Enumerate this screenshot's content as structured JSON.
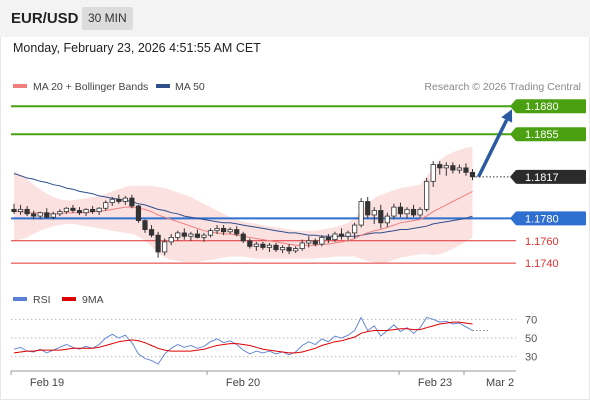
{
  "header": {
    "symbol": "EUR/USD",
    "interval": "30 MIN",
    "datetime": "Monday, February 23, 2026 4:51:55 AM CET"
  },
  "legend": {
    "ma20_label": "MA 20 + Bollinger Bands",
    "ma20_color": "#f08080",
    "ma50_label": "MA 50",
    "ma50_color": "#2e4e8c",
    "credit": "Research © 2026 Trading Central"
  },
  "rsi_legend": {
    "rsi_label": "RSI",
    "rsi_color": "#5b7fd6",
    "ma_label": "9MA",
    "ma_color": "#e00000"
  },
  "chart_data": {
    "type": "candlestick",
    "title": "",
    "ylim": [
      1.1725,
      1.189
    ],
    "x_ticks": [
      "Feb 19",
      "Feb 20",
      "Feb 23",
      "Mar 2"
    ],
    "last_price": {
      "label": "1.1817",
      "value": 1.1817
    },
    "levels": [
      {
        "label": "1.1880",
        "value": 1.188,
        "kind": "resistance",
        "color": "#4aa010"
      },
      {
        "label": "1.1855",
        "value": 1.1855,
        "kind": "resistance",
        "color": "#4aa010"
      },
      {
        "label": "1.1780",
        "value": 1.178,
        "kind": "pivot",
        "color": "#2f6fd0"
      },
      {
        "label": "1.1760",
        "value": 1.176,
        "kind": "support",
        "color": "#e03030"
      },
      {
        "label": "1.1740",
        "value": 1.174,
        "kind": "support",
        "color": "#e03030"
      }
    ],
    "arrow": {
      "from": 1.1817,
      "to": 1.188,
      "direction": "up",
      "color": "#2a5aa0"
    },
    "candles": [
      [
        1.1788,
        1.1793,
        1.1784,
        1.1786
      ],
      [
        1.1786,
        1.1792,
        1.1783,
        1.1788
      ],
      [
        1.1788,
        1.1791,
        1.1782,
        1.1784
      ],
      [
        1.1784,
        1.1787,
        1.1779,
        1.1782
      ],
      [
        1.1782,
        1.1786,
        1.1779,
        1.1785
      ],
      [
        1.1785,
        1.1789,
        1.178,
        1.1781
      ],
      [
        1.1781,
        1.1786,
        1.1779,
        1.1784
      ],
      [
        1.1784,
        1.1788,
        1.1782,
        1.1786
      ],
      [
        1.1786,
        1.179,
        1.1784,
        1.1789
      ],
      [
        1.1789,
        1.1792,
        1.1785,
        1.1787
      ],
      [
        1.1787,
        1.179,
        1.1783,
        1.1785
      ],
      [
        1.1785,
        1.1789,
        1.1782,
        1.1788
      ],
      [
        1.1788,
        1.1791,
        1.1784,
        1.1786
      ],
      [
        1.1786,
        1.179,
        1.1783,
        1.1789
      ],
      [
        1.1789,
        1.1796,
        1.1787,
        1.1794
      ],
      [
        1.1794,
        1.1799,
        1.1791,
        1.1797
      ],
      [
        1.1797,
        1.1801,
        1.1793,
        1.1795
      ],
      [
        1.1795,
        1.18,
        1.1792,
        1.1798
      ],
      [
        1.1798,
        1.1801,
        1.1789,
        1.1791
      ],
      [
        1.1791,
        1.1792,
        1.1776,
        1.1778
      ],
      [
        1.1778,
        1.1779,
        1.1767,
        1.177
      ],
      [
        1.177,
        1.1774,
        1.1763,
        1.1765
      ],
      [
        1.1765,
        1.1768,
        1.1745,
        1.175
      ],
      [
        1.175,
        1.1762,
        1.1747,
        1.1759
      ],
      [
        1.1759,
        1.1766,
        1.1756,
        1.1763
      ],
      [
        1.1763,
        1.1769,
        1.176,
        1.1767
      ],
      [
        1.1767,
        1.1771,
        1.1761,
        1.1764
      ],
      [
        1.1764,
        1.1768,
        1.176,
        1.1766
      ],
      [
        1.1766,
        1.177,
        1.1762,
        1.1763
      ],
      [
        1.1763,
        1.1767,
        1.1759,
        1.1765
      ],
      [
        1.1765,
        1.1771,
        1.1763,
        1.1769
      ],
      [
        1.1769,
        1.1774,
        1.1766,
        1.1771
      ],
      [
        1.1771,
        1.1774,
        1.1765,
        1.1768
      ],
      [
        1.1768,
        1.1772,
        1.1766,
        1.177
      ],
      [
        1.177,
        1.1773,
        1.1764,
        1.1766
      ],
      [
        1.1766,
        1.1768,
        1.1758,
        1.176
      ],
      [
        1.176,
        1.1762,
        1.1753,
        1.1755
      ],
      [
        1.1755,
        1.1759,
        1.1751,
        1.1757
      ],
      [
        1.1757,
        1.1759,
        1.1752,
        1.1754
      ],
      [
        1.1754,
        1.1758,
        1.175,
        1.1756
      ],
      [
        1.1756,
        1.1758,
        1.175,
        1.1752
      ],
      [
        1.1752,
        1.1756,
        1.1749,
        1.1754
      ],
      [
        1.1754,
        1.1757,
        1.1748,
        1.1751
      ],
      [
        1.1751,
        1.1755,
        1.1749,
        1.1753
      ],
      [
        1.1753,
        1.1761,
        1.1751,
        1.1758
      ],
      [
        1.1758,
        1.1764,
        1.1754,
        1.176
      ],
      [
        1.176,
        1.1762,
        1.1755,
        1.1757
      ],
      [
        1.1757,
        1.1765,
        1.1755,
        1.1763
      ],
      [
        1.1763,
        1.1766,
        1.1758,
        1.1761
      ],
      [
        1.1761,
        1.1768,
        1.1759,
        1.1766
      ],
      [
        1.1766,
        1.1771,
        1.1761,
        1.1764
      ],
      [
        1.1764,
        1.1769,
        1.176,
        1.1767
      ],
      [
        1.1767,
        1.1776,
        1.1762,
        1.1774
      ],
      [
        1.1774,
        1.1798,
        1.1772,
        1.1795
      ],
      [
        1.1795,
        1.1799,
        1.178,
        1.1783
      ],
      [
        1.1783,
        1.179,
        1.1775,
        1.1787
      ],
      [
        1.1787,
        1.1792,
        1.1771,
        1.1776
      ],
      [
        1.1776,
        1.1785,
        1.1772,
        1.1782
      ],
      [
        1.1782,
        1.1793,
        1.1779,
        1.179
      ],
      [
        1.179,
        1.1794,
        1.1781,
        1.1784
      ],
      [
        1.1784,
        1.179,
        1.178,
        1.1788
      ],
      [
        1.1788,
        1.1792,
        1.1781,
        1.1783
      ],
      [
        1.1783,
        1.179,
        1.1781,
        1.1788
      ],
      [
        1.1788,
        1.1816,
        1.1786,
        1.1813
      ],
      [
        1.1813,
        1.1831,
        1.1808,
        1.1828
      ],
      [
        1.1828,
        1.1831,
        1.1819,
        1.1825
      ],
      [
        1.1825,
        1.183,
        1.1818,
        1.1827
      ],
      [
        1.1827,
        1.183,
        1.182,
        1.1823
      ],
      [
        1.1823,
        1.1828,
        1.182,
        1.1825
      ],
      [
        1.1825,
        1.1829,
        1.1818,
        1.1821
      ],
      [
        1.1821,
        1.1824,
        1.1814,
        1.1817
      ]
    ],
    "ma20": [
      1.1786,
      1.1786,
      1.1785,
      1.1785,
      1.1785,
      1.1784,
      1.1784,
      1.1784,
      1.1785,
      1.1785,
      1.1785,
      1.1785,
      1.1786,
      1.1786,
      1.1787,
      1.1788,
      1.1789,
      1.179,
      1.179,
      1.1789,
      1.1788,
      1.1786,
      1.1783,
      1.1781,
      1.1779,
      1.1777,
      1.1775,
      1.1773,
      1.1771,
      1.1769,
      1.1768,
      1.1767,
      1.1766,
      1.1766,
      1.1765,
      1.1764,
      1.1763,
      1.1762,
      1.1761,
      1.176,
      1.1759,
      1.1758,
      1.1757,
      1.1756,
      1.1756,
      1.1756,
      1.1756,
      1.1757,
      1.1757,
      1.1758,
      1.1759,
      1.176,
      1.1762,
      1.1765,
      1.1767,
      1.1769,
      1.177,
      1.1772,
      1.1774,
      1.1776,
      1.1777,
      1.1778,
      1.1779,
      1.1782,
      1.1786,
      1.1789,
      1.1792,
      1.1795,
      1.1798,
      1.1801,
      1.1804
    ],
    "ma50": [
      1.182,
      1.1818,
      1.1816,
      1.1815,
      1.1813,
      1.1812,
      1.181,
      1.1809,
      1.1807,
      1.1806,
      1.1804,
      1.1803,
      1.1802,
      1.18,
      1.1799,
      1.1798,
      1.1797,
      1.1796,
      1.1795,
      1.1793,
      1.1792,
      1.179,
      1.1788,
      1.1787,
      1.1785,
      1.1784,
      1.1782,
      1.1781,
      1.178,
      1.1779,
      1.1778,
      1.1777,
      1.1776,
      1.1776,
      1.1775,
      1.1774,
      1.1773,
      1.1772,
      1.1771,
      1.177,
      1.1769,
      1.1768,
      1.1767,
      1.1767,
      1.1766,
      1.1765,
      1.1765,
      1.1764,
      1.1764,
      1.1764,
      1.1764,
      1.1764,
      1.1764,
      1.1765,
      1.1766,
      1.1767,
      1.1767,
      1.1768,
      1.1769,
      1.177,
      1.177,
      1.1771,
      1.1772,
      1.1773,
      1.1775,
      1.1776,
      1.1777,
      1.1778,
      1.1779,
      1.178,
      1.1782
    ],
    "bb_upper": [
      1.1822,
      1.1819,
      1.1815,
      1.181,
      1.1806,
      1.1802,
      1.1799,
      1.1797,
      1.1796,
      1.1796,
      1.1797,
      1.1798,
      1.1799,
      1.18,
      1.1802,
      1.1804,
      1.1806,
      1.1808,
      1.1809,
      1.1809,
      1.1809,
      1.1809,
      1.1808,
      1.1807,
      1.1805,
      1.1803,
      1.1801,
      1.1799,
      1.1796,
      1.1793,
      1.179,
      1.1787,
      1.1784,
      1.1781,
      1.1779,
      1.1777,
      1.1776,
      1.1775,
      1.1774,
      1.1773,
      1.1772,
      1.1771,
      1.177,
      1.1769,
      1.1769,
      1.1769,
      1.1769,
      1.177,
      1.1771,
      1.1772,
      1.1774,
      1.1776,
      1.178,
      1.1787,
      1.1793,
      1.1798,
      1.1801,
      1.1803,
      1.1805,
      1.1807,
      1.1808,
      1.1809,
      1.181,
      1.1817,
      1.1826,
      1.1832,
      1.1836,
      1.1839,
      1.1841,
      1.1843,
      1.1844
    ],
    "bb_lower": [
      1.176,
      1.1761,
      1.1763,
      1.1766,
      1.1769,
      1.1771,
      1.1773,
      1.1774,
      1.1775,
      1.1775,
      1.1774,
      1.1773,
      1.1772,
      1.1771,
      1.177,
      1.1769,
      1.1768,
      1.1767,
      1.1766,
      1.1764,
      1.176,
      1.1755,
      1.1749,
      1.1745,
      1.1743,
      1.1742,
      1.1741,
      1.1741,
      1.1741,
      1.1742,
      1.1743,
      1.1744,
      1.1745,
      1.1746,
      1.1746,
      1.1746,
      1.1745,
      1.1744,
      1.1744,
      1.1744,
      1.1744,
      1.1744,
      1.1744,
      1.1744,
      1.1744,
      1.1744,
      1.1744,
      1.1745,
      1.1745,
      1.1746,
      1.1746,
      1.1746,
      1.1746,
      1.1744,
      1.1742,
      1.1741,
      1.174,
      1.1741,
      1.1743,
      1.1745,
      1.1746,
      1.1747,
      1.1748,
      1.1748,
      1.1747,
      1.1748,
      1.175,
      1.1753,
      1.1756,
      1.1759,
      1.1763
    ],
    "rsi": {
      "ylim": [
        20,
        80
      ],
      "ticks": [
        70,
        50,
        30
      ],
      "rsi_values": [
        38,
        40,
        36,
        35,
        38,
        34,
        37,
        40,
        43,
        40,
        38,
        41,
        39,
        43,
        50,
        54,
        50,
        53,
        45,
        33,
        28,
        26,
        22,
        33,
        39,
        43,
        40,
        42,
        39,
        41,
        46,
        49,
        45,
        47,
        43,
        37,
        33,
        36,
        34,
        36,
        33,
        35,
        32,
        35,
        42,
        46,
        43,
        49,
        46,
        52,
        50,
        53,
        58,
        72,
        58,
        63,
        52,
        58,
        64,
        57,
        61,
        55,
        61,
        72,
        70,
        67,
        68,
        65,
        66,
        62,
        58
      ],
      "ma_values": [
        34,
        35,
        36,
        36,
        37,
        37,
        37,
        37,
        38,
        39,
        39,
        39,
        39,
        40,
        42,
        44,
        46,
        47,
        48,
        47,
        45,
        42,
        39,
        37,
        36,
        36,
        36,
        36,
        37,
        38,
        40,
        42,
        43,
        44,
        44,
        43,
        42,
        40,
        38,
        37,
        36,
        35,
        34,
        34,
        35,
        37,
        39,
        42,
        44,
        46,
        47,
        49,
        51,
        55,
        57,
        58,
        58,
        58,
        59,
        60,
        60,
        59,
        59,
        61,
        63,
        65,
        66,
        67,
        67,
        66,
        65
      ]
    }
  }
}
